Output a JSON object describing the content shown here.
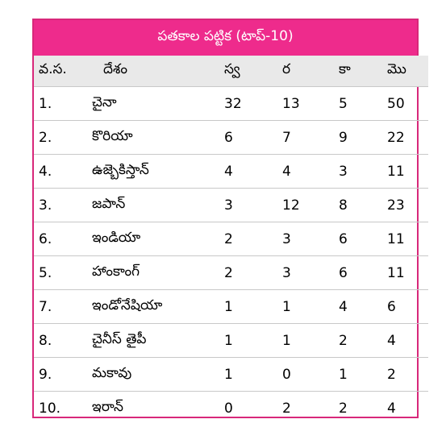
{
  "table": {
    "title": "పతకాల పట్టిక (టాప్-10)",
    "headers": [
      "వ.స.",
      "దేశం",
      "స్వ",
      "ర",
      "కా",
      "మొ"
    ],
    "rows": [
      [
        "1.",
        "చైనా",
        "32",
        "13",
        "5",
        "50"
      ],
      [
        "2.",
        "కొరియా",
        "6",
        "7",
        "9",
        "22"
      ],
      [
        "4.",
        "ఉజ్బెకిస్తాన్",
        "4",
        "4",
        "3",
        "11"
      ],
      [
        "3.",
        "జపాన్",
        "3",
        "12",
        "8",
        "23"
      ],
      [
        "6.",
        "ఇండియా",
        "2",
        "3",
        "6",
        "11"
      ],
      [
        "5.",
        "హాంకాంగ్",
        "2",
        "3",
        "6",
        "11"
      ],
      [
        "7.",
        "ఇండోనేషియా",
        "1",
        "1",
        "4",
        "6"
      ],
      [
        "8.",
        "చైనీస్ తైపీ",
        "1",
        "1",
        "2",
        "4"
      ],
      [
        "9.",
        "మకావు",
        "1",
        "0",
        "1",
        "2"
      ],
      [
        "10.",
        "ఇరాన్",
        "0",
        "2",
        "2",
        "4"
      ]
    ]
  },
  "colors": {
    "title_bg": "#ee2b8c",
    "border": "#d8287a",
    "header_bg": "#e9e9e9"
  }
}
